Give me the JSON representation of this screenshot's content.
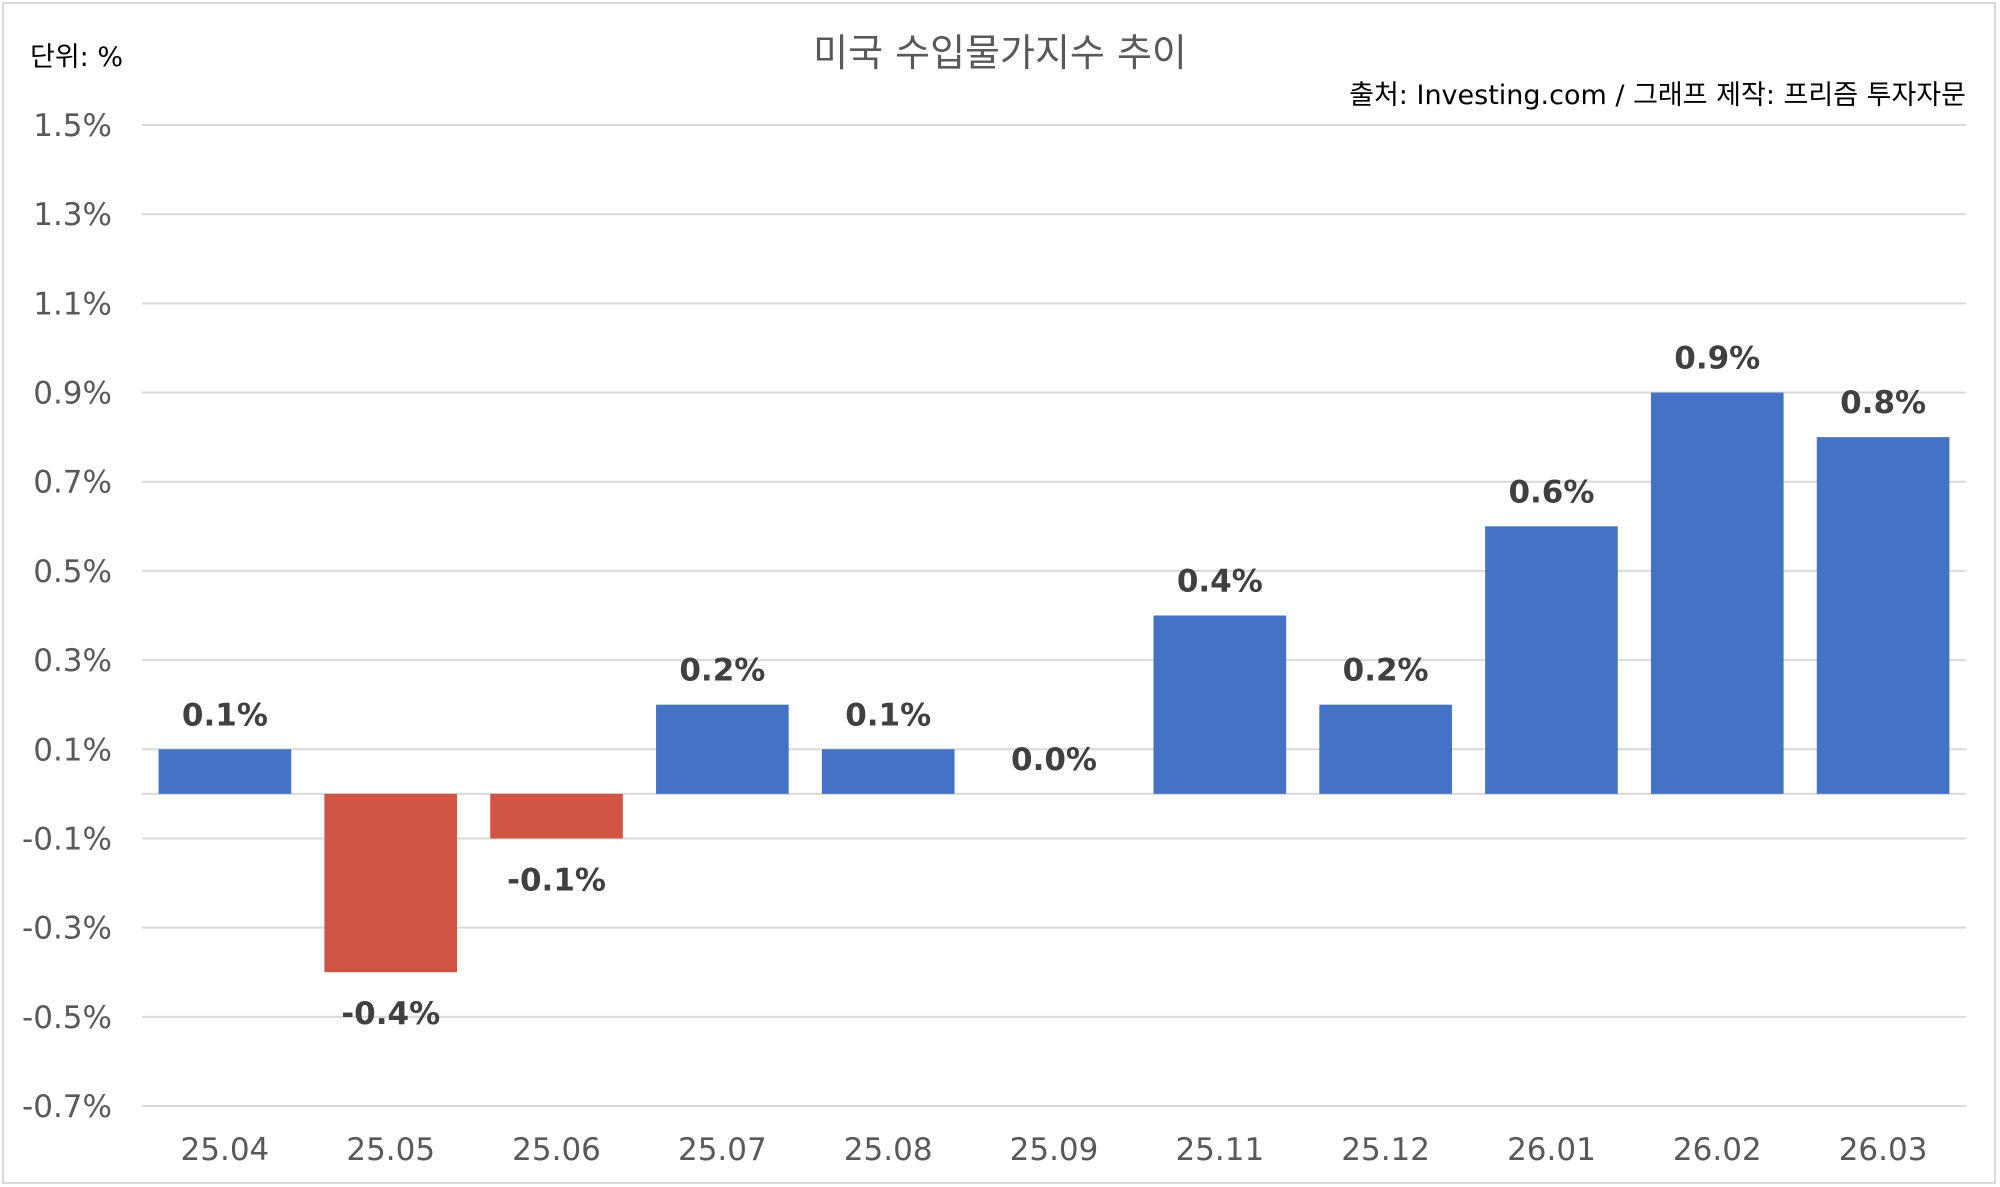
{
  "chart_data": {
    "type": "bar",
    "title": "미국 수입물가지수 추이",
    "unit_label": "단위: %",
    "source": "출처: Investing.com / 그래프 제작: 프리즘 투자자문",
    "categories": [
      "25.04",
      "25.05",
      "25.06",
      "25.07",
      "25.08",
      "25.09",
      "25.11",
      "25.12",
      "26.01",
      "26.02",
      "26.03"
    ],
    "values": [
      0.1,
      -0.4,
      -0.1,
      0.2,
      0.1,
      0.0,
      0.4,
      0.2,
      0.6,
      0.9,
      0.8
    ],
    "data_labels": [
      "0.1%",
      "-0.4%",
      "-0.1%",
      "0.2%",
      "0.1%",
      "0.0%",
      "0.4%",
      "0.2%",
      "0.6%",
      "0.9%",
      "0.8%"
    ],
    "yticks": [
      1.5,
      1.3,
      1.1,
      0.9,
      0.7,
      0.5,
      0.3,
      0.1,
      -0.1,
      -0.3,
      -0.5,
      -0.7
    ],
    "ytick_labels": [
      "1.5%",
      "1.3%",
      "1.1%",
      "0.9%",
      "0.7%",
      "0.5%",
      "0.3%",
      "0.1%",
      "-0.1%",
      "-0.3%",
      "-0.5%",
      "-0.7%"
    ],
    "ylim": [
      -0.7,
      1.5
    ],
    "grid": true,
    "legend": "none",
    "colors": {
      "positive": "#4472c4",
      "negative": "#d05444"
    }
  }
}
